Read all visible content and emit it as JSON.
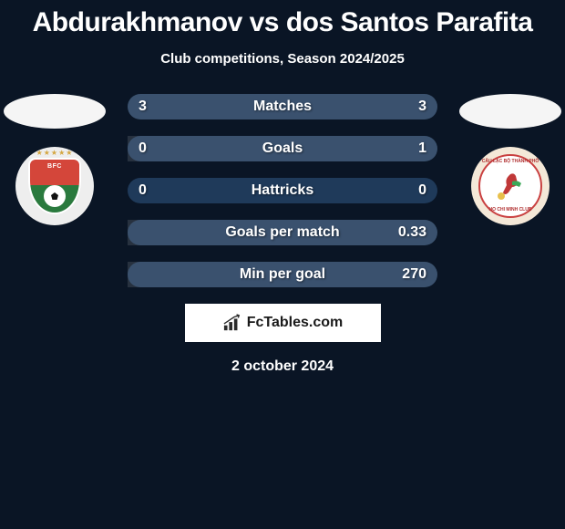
{
  "title": "Abdurakhmanov vs dos Santos Parafita",
  "subtitle": "Club competitions, Season 2024/2025",
  "title_color": "#ffffff",
  "title_fontsize": 30,
  "subtitle_fontsize": 15,
  "background_color": "#0a1525",
  "player_oval_color": "#f5f5f5",
  "badges": {
    "left": {
      "bg": "#eeeeee",
      "shield_top_color": "#d4463a",
      "shield_bottom_color": "#2a7a3e",
      "text": "BFC",
      "stars": "★★★★★"
    },
    "right": {
      "bg": "#f4e8d8",
      "ring_color": "#c94040",
      "ring_text_top": "CÂU LẠC BỘ THÀNH PHỐ",
      "ring_text_bottom": "HO CHI MINH CLUB",
      "figure_colors": {
        "body": "#c03838",
        "accent": "#3ba858",
        "ball": "#e8c04c"
      }
    }
  },
  "stats": {
    "row_bg": "#1f3a5a",
    "bar_overlay": "rgba(255,255,255,0.12)",
    "label_color": "#ffffff",
    "label_fontsize": 16,
    "rows": [
      {
        "label": "Matches",
        "left": "3",
        "right": "3",
        "left_pct": 50,
        "right_pct": 50
      },
      {
        "label": "Goals",
        "left": "0",
        "right": "1",
        "left_pct": 0,
        "right_pct": 100
      },
      {
        "label": "Hattricks",
        "left": "0",
        "right": "0",
        "left_pct": 0,
        "right_pct": 0
      },
      {
        "label": "Goals per match",
        "left": "",
        "right": "0.33",
        "left_pct": 0,
        "right_pct": 100
      },
      {
        "label": "Min per goal",
        "left": "",
        "right": "270",
        "left_pct": 0,
        "right_pct": 100
      }
    ]
  },
  "footer": {
    "box_bg": "#ffffff",
    "text": "FcTables.com",
    "text_color": "#1a1a1a",
    "icon_color": "#2a2a2a"
  },
  "date": "2 october 2024"
}
